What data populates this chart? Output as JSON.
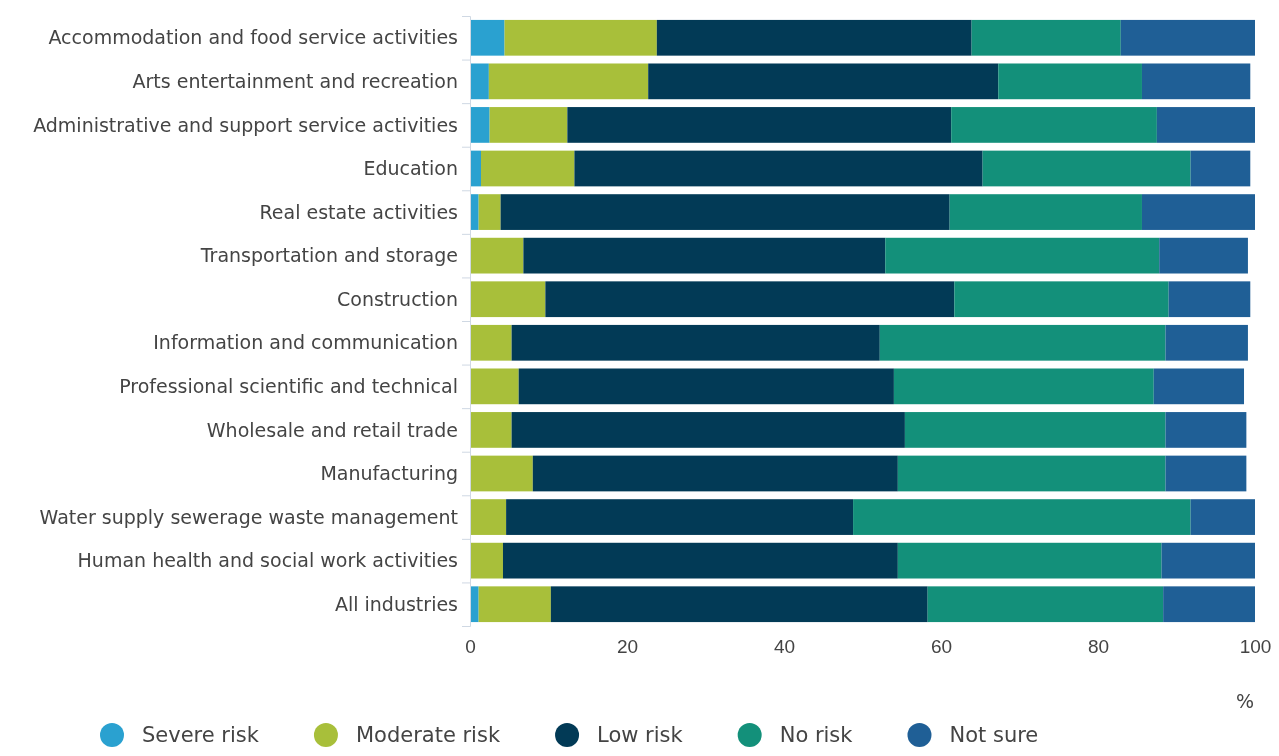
{
  "chart_data": {
    "type": "bar",
    "orientation": "horizontal",
    "stacked": true,
    "xlabel": "%",
    "legend": "bottom",
    "grid": false,
    "categories": [
      "Accommodation and food service activities",
      "Arts entertainment and recreation",
      "Administrative and support service activities",
      "Education",
      "Real estate activities",
      "Transportation and storage",
      "Construction",
      "Information and communication",
      "Professional scientific and technical",
      "Wholesale and retail trade",
      "Manufacturing",
      "Water supply sewerage waste management",
      "Human health and social work activities",
      "All industries"
    ],
    "xlim": [
      0,
      100
    ],
    "xticks": [
      0,
      20,
      40,
      60,
      80,
      100
    ],
    "series": [
      {
        "name": "Severe risk",
        "color": "#2aa1d0",
        "values": [
          4.4,
          2.4,
          2.5,
          1.4,
          1.1,
          0,
          0,
          0,
          0,
          0,
          0,
          0,
          0,
          1.1
        ]
      },
      {
        "name": "Moderate risk",
        "color": "#a8bf3a",
        "values": [
          19.4,
          20.3,
          9.9,
          11.9,
          2.8,
          6.8,
          9.6,
          5.3,
          6.2,
          5.3,
          8.0,
          4.6,
          4.2,
          9.2
        ]
      },
      {
        "name": "Low risk",
        "color": "#023a56",
        "values": [
          40.1,
          44.6,
          48.9,
          52.0,
          57.2,
          46.1,
          52.1,
          46.9,
          47.8,
          50.1,
          46.5,
          44.2,
          50.3,
          48.0
        ]
      },
      {
        "name": "No risk",
        "color": "#13907a",
        "values": [
          19.0,
          18.3,
          26.2,
          26.5,
          24.5,
          34.9,
          27.3,
          36.4,
          33.1,
          33.2,
          34.1,
          43.0,
          33.6,
          30.0
        ]
      },
      {
        "name": "Not sure",
        "color": "#1f5f96",
        "values": [
          17.1,
          13.8,
          12.5,
          7.6,
          14.4,
          11.3,
          10.4,
          10.5,
          11.5,
          10.3,
          10.3,
          8.2,
          11.9,
          11.7
        ]
      }
    ]
  }
}
